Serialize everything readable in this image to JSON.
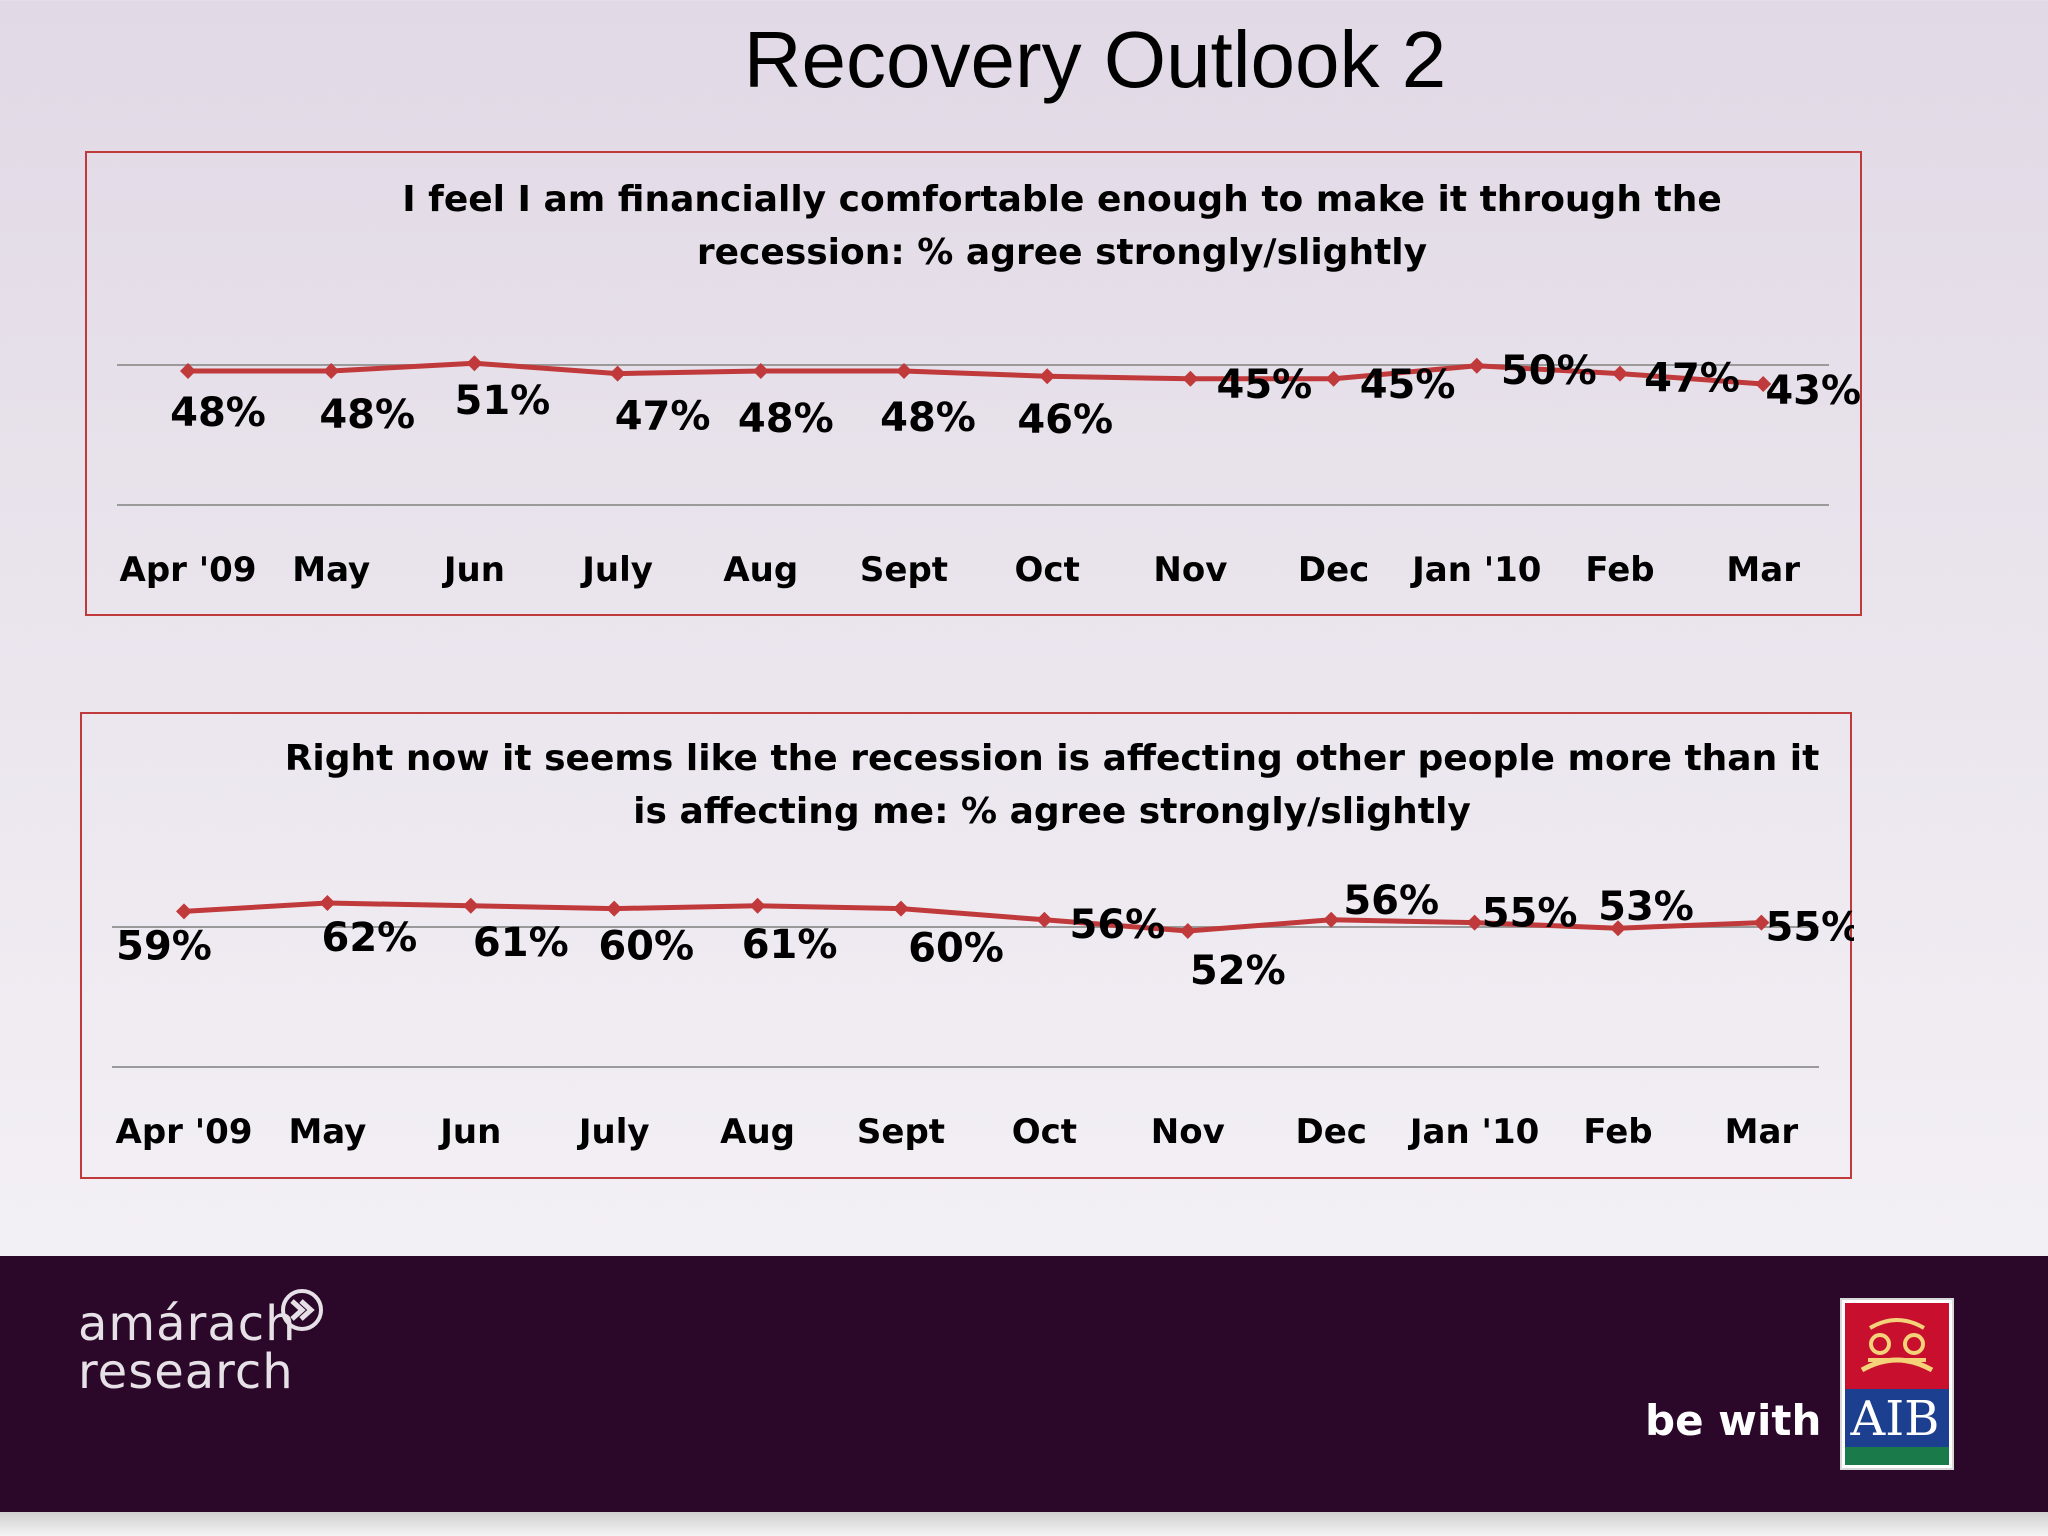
{
  "slide": {
    "title": "Recovery Outlook 2"
  },
  "footer": {
    "company_line1": "amárach",
    "company_line2": "research",
    "tagline": "be with",
    "brand": "AIB"
  },
  "colors": {
    "series": "#c0393b",
    "footer_bg": "#2b0729",
    "frame": "#c0393b"
  },
  "chart_data": [
    {
      "type": "line",
      "title": "I feel I am financially comfortable enough to make it through the recession: % agree strongly/slightly",
      "title_lines": [
        "I feel I am financially comfortable enough to make it through the",
        "recession: % agree strongly/slightly"
      ],
      "categories": [
        "Apr '09",
        "May",
        "Jun",
        "July",
        "Aug",
        "Sept",
        "Oct",
        "Nov",
        "Dec",
        "Jan '10",
        "Feb",
        "Mar"
      ],
      "values": [
        48,
        48,
        51,
        47,
        48,
        48,
        46,
        45,
        45,
        50,
        47,
        43
      ],
      "labels": [
        "48%",
        "48%",
        "51%",
        "47%",
        "48%",
        "48%",
        "46%",
        "45%",
        "45%",
        "50%",
        "47%",
        "43%"
      ],
      "marker": "diamond",
      "grid": true
    },
    {
      "type": "line",
      "title": "Right now it seems like the recession is affecting other people more than it is affecting me: % agree strongly/slightly",
      "title_lines": [
        "Right now it seems like the recession is affecting other people more than it",
        "is affecting me: % agree strongly/slightly"
      ],
      "categories": [
        "Apr '09",
        "May",
        "Jun",
        "July",
        "Aug",
        "Sept",
        "Oct",
        "Nov",
        "Dec",
        "Jan '10",
        "Feb",
        "Mar"
      ],
      "values": [
        59,
        62,
        61,
        60,
        61,
        60,
        56,
        52,
        56,
        55,
        53,
        55
      ],
      "labels": [
        "59%",
        "62%",
        "61%",
        "60%",
        "61%",
        "60%",
        "56%",
        "52%",
        "56%",
        "55%",
        "53%",
        "55%"
      ],
      "marker": "diamond",
      "grid": true
    }
  ]
}
